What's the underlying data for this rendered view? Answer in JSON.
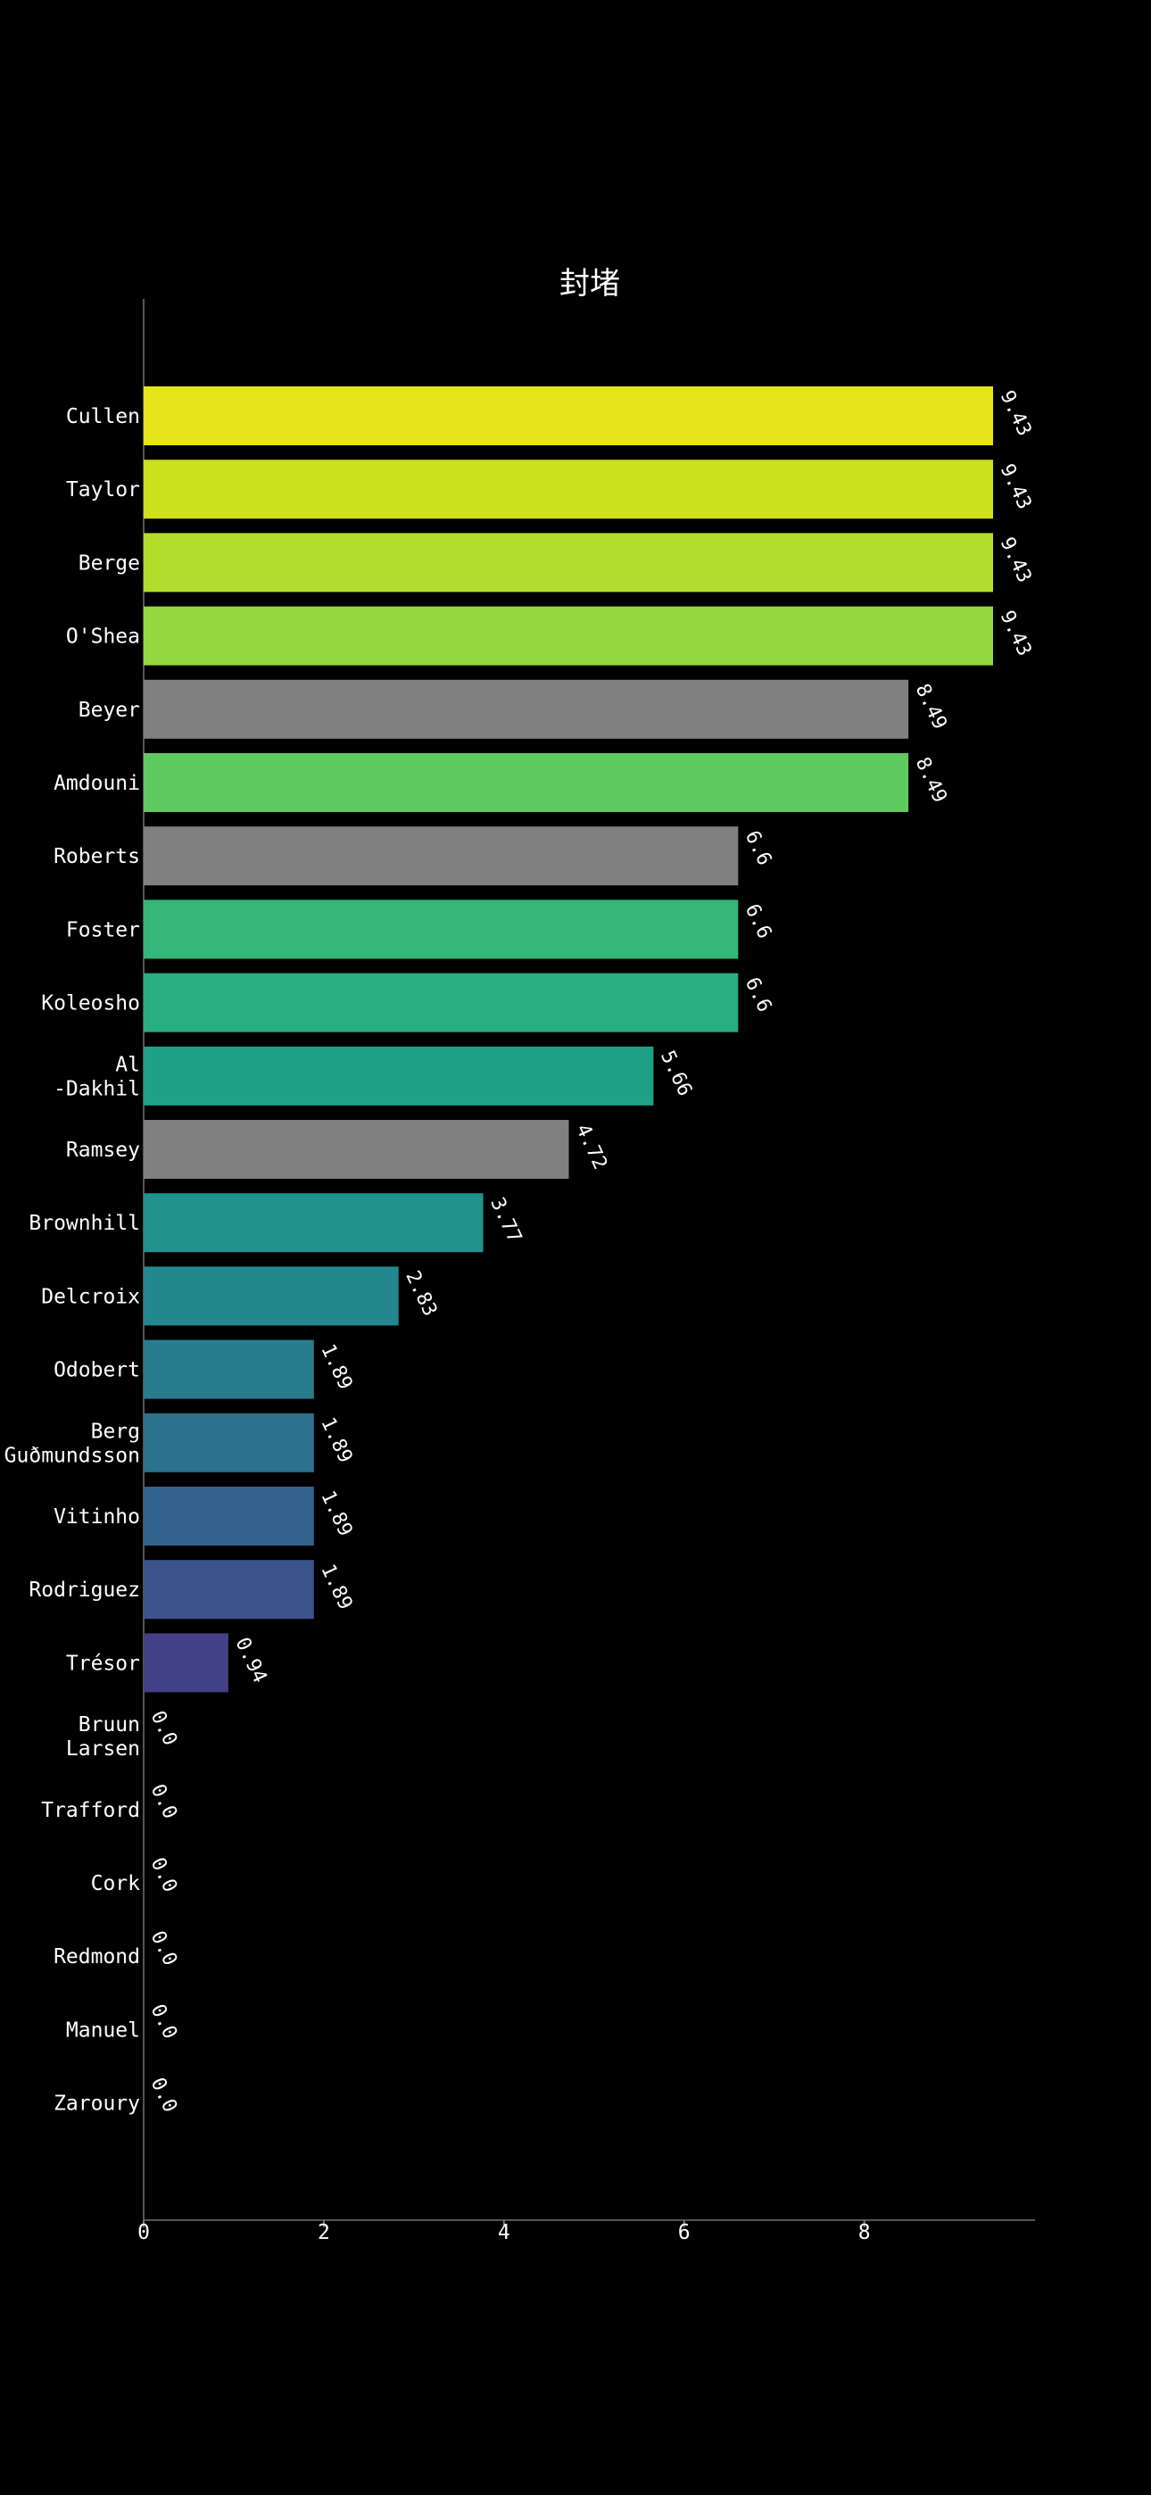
{
  "chart_data": {
    "type": "bar",
    "orientation": "horizontal",
    "title": "封堵",
    "xlabel": "",
    "ylabel": "",
    "xlim": [
      0,
      9.9
    ],
    "xticks": [
      0,
      2,
      4,
      6,
      8
    ],
    "grid": false,
    "legend": "none",
    "categories": [
      [
        "Cullen"
      ],
      [
        "Taylor"
      ],
      [
        "Berge"
      ],
      [
        "O'Shea"
      ],
      [
        "Beyer"
      ],
      [
        "Amdouni"
      ],
      [
        "Roberts"
      ],
      [
        "Foster"
      ],
      [
        "Koleosho"
      ],
      [
        "Al",
        "-Dakhil"
      ],
      [
        "Ramsey"
      ],
      [
        "Brownhill"
      ],
      [
        "Delcroix"
      ],
      [
        "Odobert"
      ],
      [
        "Berg",
        "Guðmundsson"
      ],
      [
        "Vitinho"
      ],
      [
        "Rodriguez"
      ],
      [
        "Trésor"
      ],
      [
        "Bruun",
        "Larsen"
      ],
      [
        "Trafford"
      ],
      [
        "Cork"
      ],
      [
        "Redmond"
      ],
      [
        "Manuel"
      ],
      [
        "Zaroury"
      ]
    ],
    "values": [
      9.43,
      9.43,
      9.43,
      9.43,
      8.49,
      8.49,
      6.6,
      6.6,
      6.6,
      5.66,
      4.72,
      3.77,
      2.83,
      1.89,
      1.89,
      1.89,
      1.89,
      0.94,
      0.0,
      0.0,
      0.0,
      0.0,
      0.0,
      0.0
    ],
    "value_labels": [
      "9.43",
      "9.43",
      "9.43",
      "9.43",
      "8.49",
      "8.49",
      "6.6",
      "6.6",
      "6.6",
      "5.66",
      "4.72",
      "3.77",
      "2.83",
      "1.89",
      "1.89",
      "1.89",
      "1.89",
      "0.94",
      "0.0",
      "0.0",
      "0.0",
      "0.0",
      "0.0",
      "0.0"
    ],
    "colors": [
      "#e6e41a",
      "#cde11d",
      "#b3dd2c",
      "#95d840",
      "#808080",
      "#5fca5f",
      "#808080",
      "#35b779",
      "#28ae80",
      "#1fa187",
      "#808080",
      "#21918c",
      "#24878e",
      "#297b8e",
      "#2d718e",
      "#33638d",
      "#3b528b",
      "#424086",
      "#482878",
      "#48186a",
      "#470d60",
      "#46085c",
      "#440154",
      "#440154"
    ]
  }
}
